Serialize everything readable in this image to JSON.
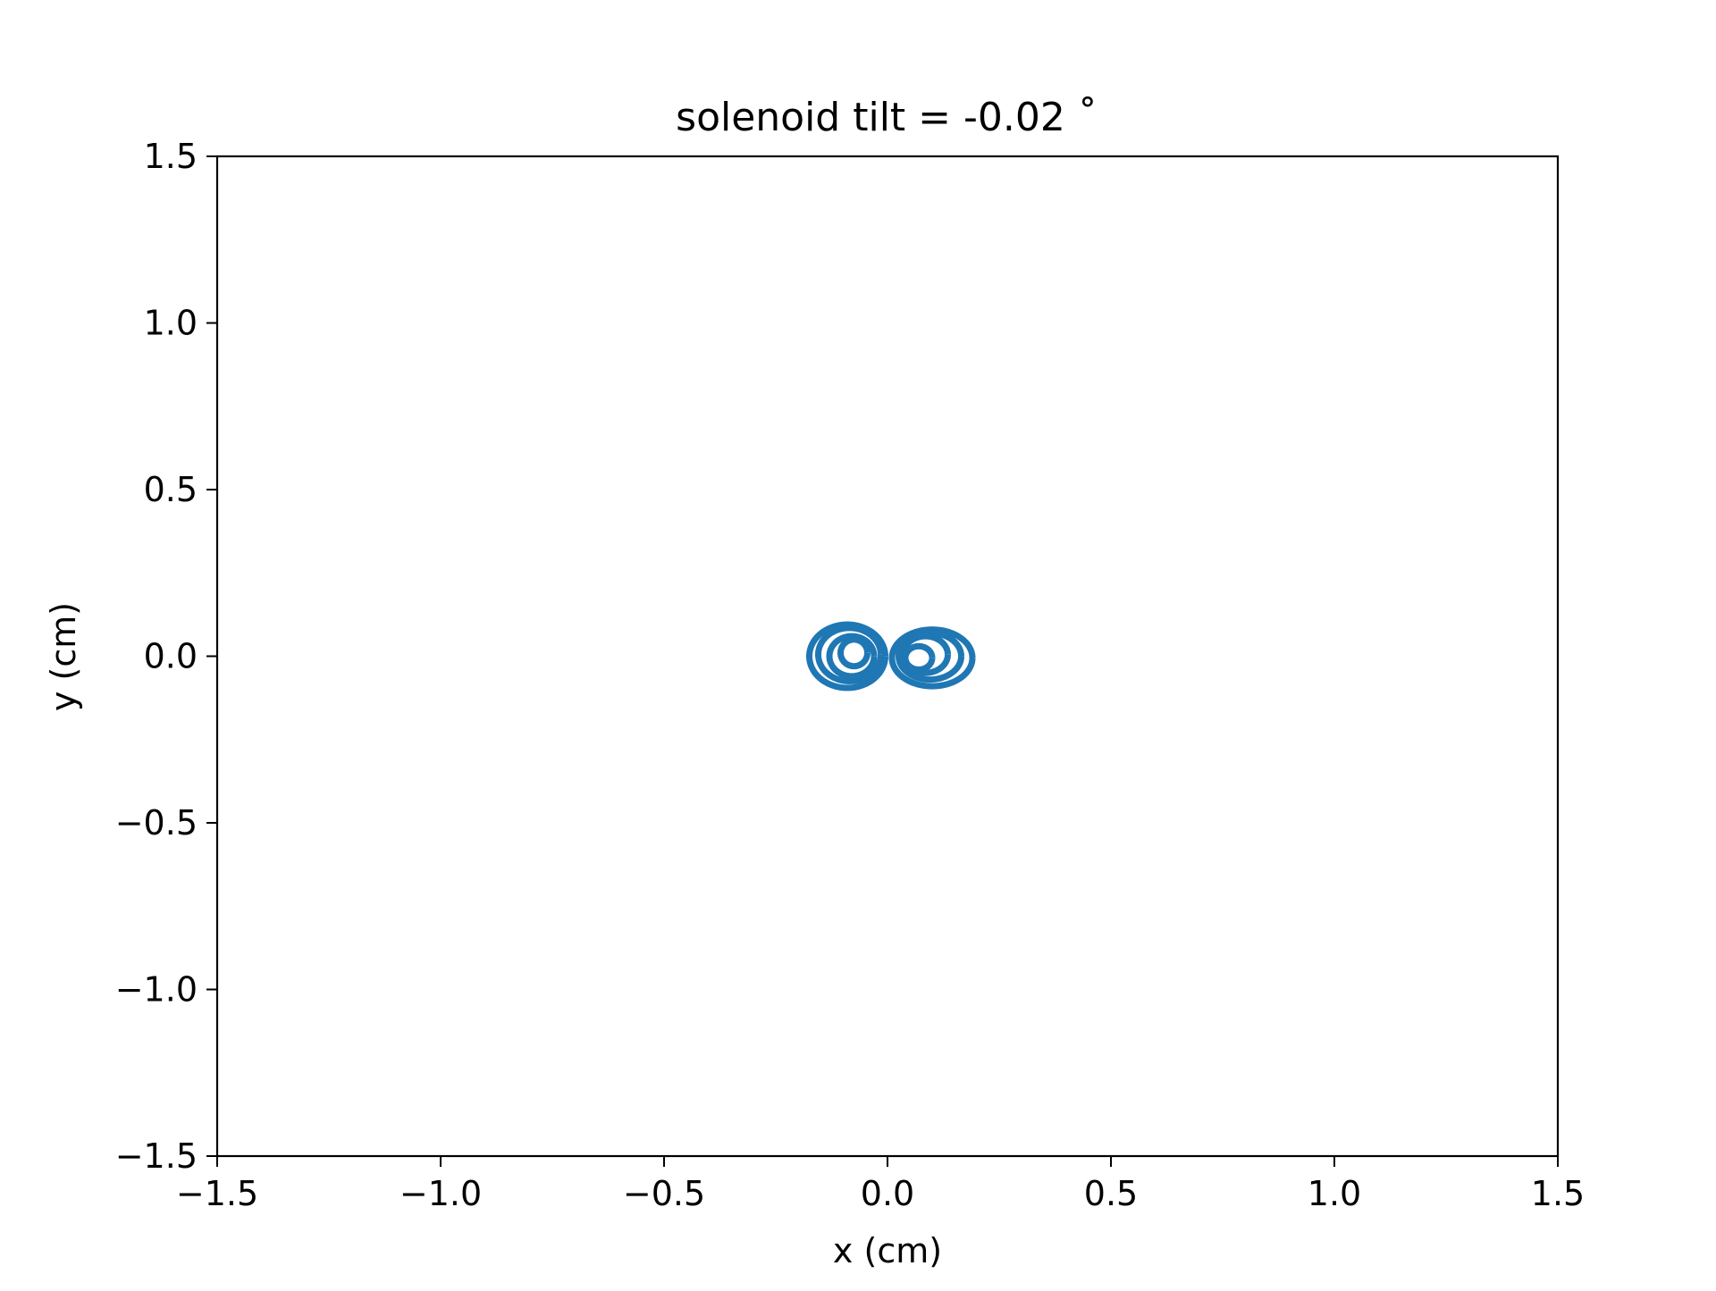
{
  "chart_data": {
    "type": "line",
    "title": "solenoid tilt = -0.02 ˚",
    "xlabel": "x (cm)",
    "ylabel": "y (cm)",
    "xlim": [
      -1.5,
      1.5
    ],
    "ylim": [
      -1.5,
      1.5
    ],
    "x_ticks": [
      -1.5,
      -1.0,
      -0.5,
      0.0,
      0.5,
      1.0,
      1.5
    ],
    "y_ticks": [
      -1.5,
      -1.0,
      -0.5,
      0.0,
      0.5,
      1.0,
      1.5
    ],
    "x_tick_labels": [
      "−1.5",
      "−1.0",
      "−0.5",
      "0.0",
      "0.5",
      "1.0",
      "1.5"
    ],
    "y_tick_labels": [
      "−1.5",
      "−1.0",
      "−0.5",
      "0.0",
      "0.5",
      "1.0",
      "1.5"
    ],
    "grid": false,
    "series": [
      {
        "color": "#1f77b4",
        "lobes": [
          {
            "cx": -0.09,
            "cy": 0.0,
            "rx": 0.085,
            "ry": 0.095
          },
          {
            "cx": -0.085,
            "cy": 0.005,
            "rx": 0.07,
            "ry": 0.08
          },
          {
            "cx": -0.08,
            "cy": 0.0,
            "rx": 0.05,
            "ry": 0.06
          },
          {
            "cx": -0.075,
            "cy": 0.01,
            "rx": 0.03,
            "ry": 0.04
          },
          {
            "cx": 0.1,
            "cy": -0.005,
            "rx": 0.09,
            "ry": 0.085
          },
          {
            "cx": 0.095,
            "cy": 0.0,
            "rx": 0.07,
            "ry": 0.07
          },
          {
            "cx": 0.085,
            "cy": 0.005,
            "rx": 0.05,
            "ry": 0.055
          },
          {
            "cx": 0.07,
            "cy": -0.005,
            "rx": 0.03,
            "ry": 0.035
          }
        ]
      }
    ]
  }
}
